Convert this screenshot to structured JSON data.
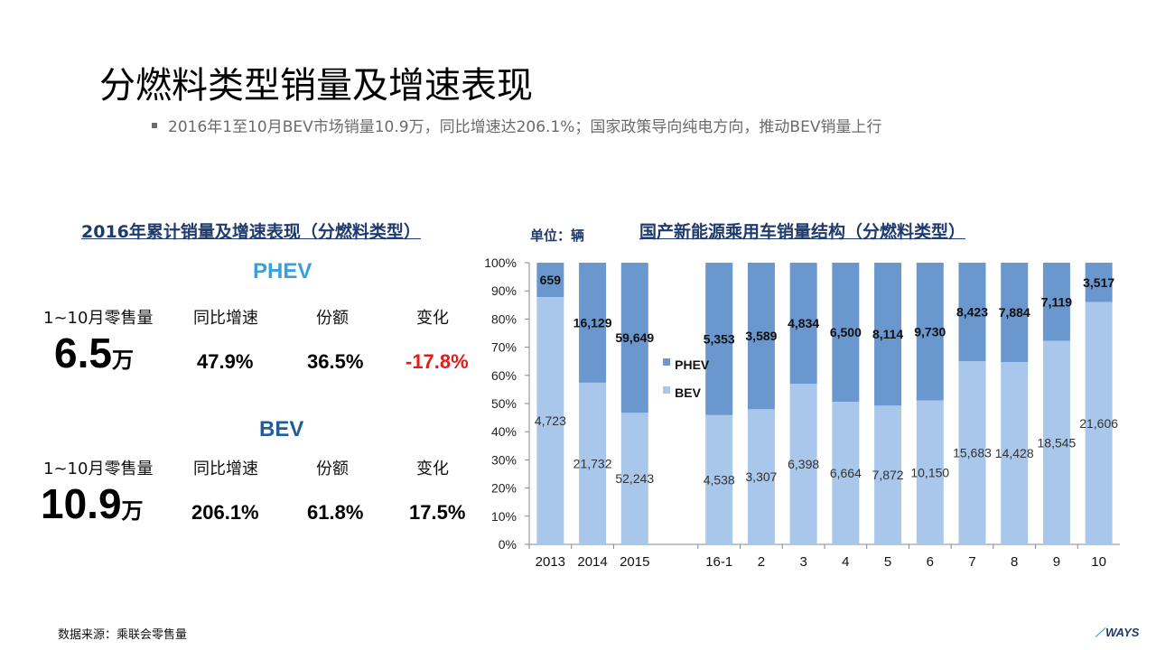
{
  "title": "分燃料类型销量及增速表现",
  "bullet": "2016年1至10月BEV市场销量10.9万，同比增速达206.1%；国家政策导向纯电方向，推动BEV销量上行",
  "left_panel": {
    "title": "2016年累计销量及增速表现（分燃料类型）",
    "phev": {
      "name": "PHEV",
      "labels": [
        "1~10月零售量",
        "同比增速",
        "份额",
        "变化"
      ],
      "sales": "6.5",
      "unit": "万",
      "growth": "47.9%",
      "share": "36.5%",
      "change": "-17.8%"
    },
    "bev": {
      "name": "BEV",
      "labels": [
        "1~10月零售量",
        "同比增速",
        "份额",
        "变化"
      ],
      "sales": "10.9",
      "unit": "万",
      "growth": "206.1%",
      "share": "61.8%",
      "change": "17.5%"
    },
    "colors": {
      "phev_head": "#3aa0dc",
      "bev_head": "#1f5d99",
      "negative": "#e41b1b"
    }
  },
  "right_panel": {
    "title": "国产新能源乘用车销量结构（分燃料类型）",
    "unit_label": "单位：辆"
  },
  "chart_data": {
    "type": "bar",
    "stacked": "percent",
    "categories": [
      "2013",
      "2014",
      "2015",
      "16-1",
      "2",
      "3",
      "4",
      "5",
      "6",
      "7",
      "8",
      "9",
      "10"
    ],
    "series": [
      {
        "name": "BEV",
        "color": "#a9c7ea",
        "values": [
          4723,
          21732,
          52243,
          4538,
          3307,
          6398,
          6664,
          7872,
          10150,
          15683,
          14428,
          18545,
          21606
        ]
      },
      {
        "name": "PHEV",
        "color": "#6a97cd",
        "values": [
          659,
          16129,
          59649,
          5353,
          3589,
          4834,
          6500,
          8114,
          9730,
          8423,
          7884,
          7119,
          3517
        ]
      }
    ],
    "value_labels": {
      "BEV": [
        "4,723",
        "21,732",
        "52,243",
        "4,538",
        "3,307",
        "6,398",
        "6,664",
        "7,872",
        "10,150",
        "15,683",
        "14,428",
        "18,545",
        "21,606"
      ],
      "PHEV": [
        "659",
        "16,129",
        "59,649",
        "5,353",
        "3,589",
        "4,834",
        "6,500",
        "8,114",
        "9,730",
        "8,423",
        "7,884",
        "7,119",
        "3,517"
      ]
    },
    "y_ticks": [
      "0%",
      "10%",
      "20%",
      "30%",
      "40%",
      "50%",
      "60%",
      "70%",
      "80%",
      "90%",
      "100%"
    ],
    "ylim": [
      0,
      100
    ],
    "legend": [
      "PHEV",
      "BEV"
    ],
    "legend_position": "inside, between 2015 and 16-1",
    "grid": false
  },
  "footer": {
    "source": "数据来源：乘联会零售量",
    "logo": "WAYS"
  }
}
